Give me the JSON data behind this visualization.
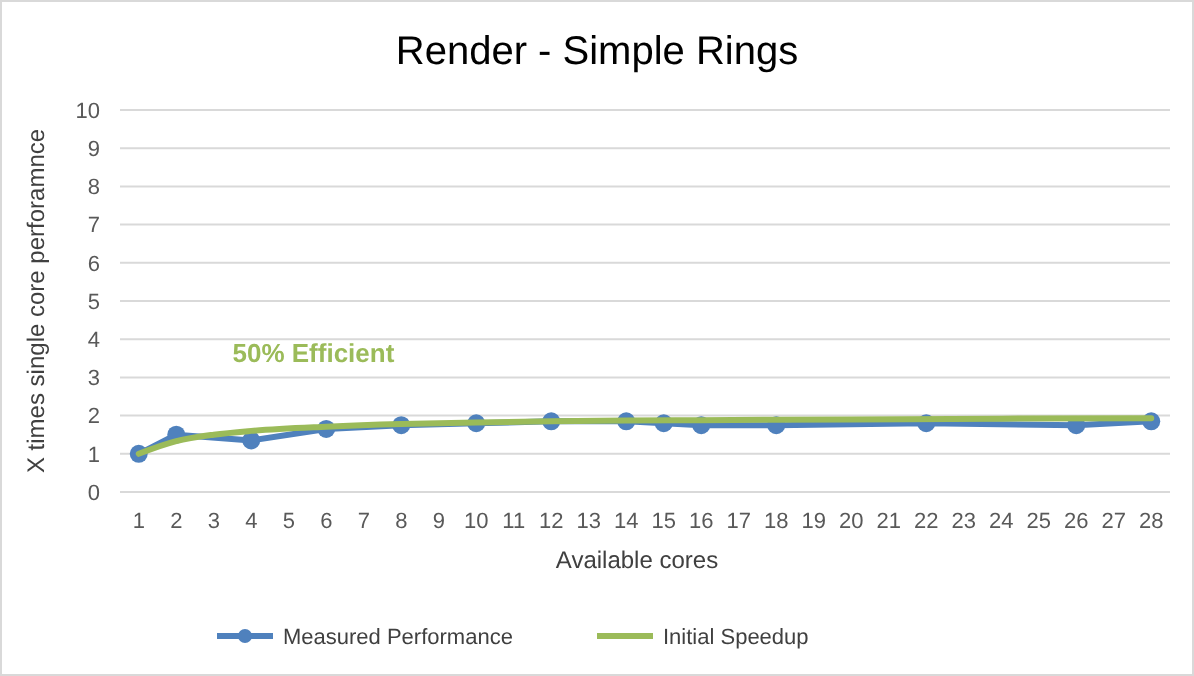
{
  "chart_data": {
    "type": "line",
    "title": "Render - Simple Rings",
    "xlabel": "Available cores",
    "ylabel": "X times single core perforamnce",
    "xlim": [
      0.5,
      28.5
    ],
    "xticks": [
      1,
      2,
      3,
      4,
      5,
      6,
      7,
      8,
      9,
      10,
      11,
      12,
      13,
      14,
      15,
      16,
      17,
      18,
      19,
      20,
      21,
      22,
      23,
      24,
      25,
      26,
      27,
      28
    ],
    "ylim": [
      0,
      10
    ],
    "yticks": [
      0,
      1,
      2,
      3,
      4,
      5,
      6,
      7,
      8,
      9,
      10
    ],
    "grid": "y",
    "legend": "bottom",
    "line_style": "solid",
    "annotations": [
      "50% Efficient"
    ],
    "series": [
      {
        "name": "Measured Performance",
        "color": "#4f81bd",
        "marker": "circle",
        "x": [
          1,
          2,
          4,
          6,
          8,
          10,
          12,
          14,
          15,
          16,
          18,
          22,
          26,
          28
        ],
        "values": [
          1.0,
          1.5,
          1.35,
          1.65,
          1.75,
          1.8,
          1.85,
          1.85,
          1.8,
          1.75,
          1.75,
          1.8,
          1.75,
          1.85
        ]
      },
      {
        "name": "Initial Speedup",
        "color": "#9bbb59",
        "marker": "none",
        "x": [
          1,
          2,
          3,
          4,
          6,
          8,
          10,
          12,
          14,
          16,
          20,
          24,
          28
        ],
        "values": [
          1.0,
          1.33,
          1.5,
          1.6,
          1.71,
          1.78,
          1.82,
          1.85,
          1.87,
          1.88,
          1.9,
          1.92,
          1.93
        ]
      }
    ]
  }
}
